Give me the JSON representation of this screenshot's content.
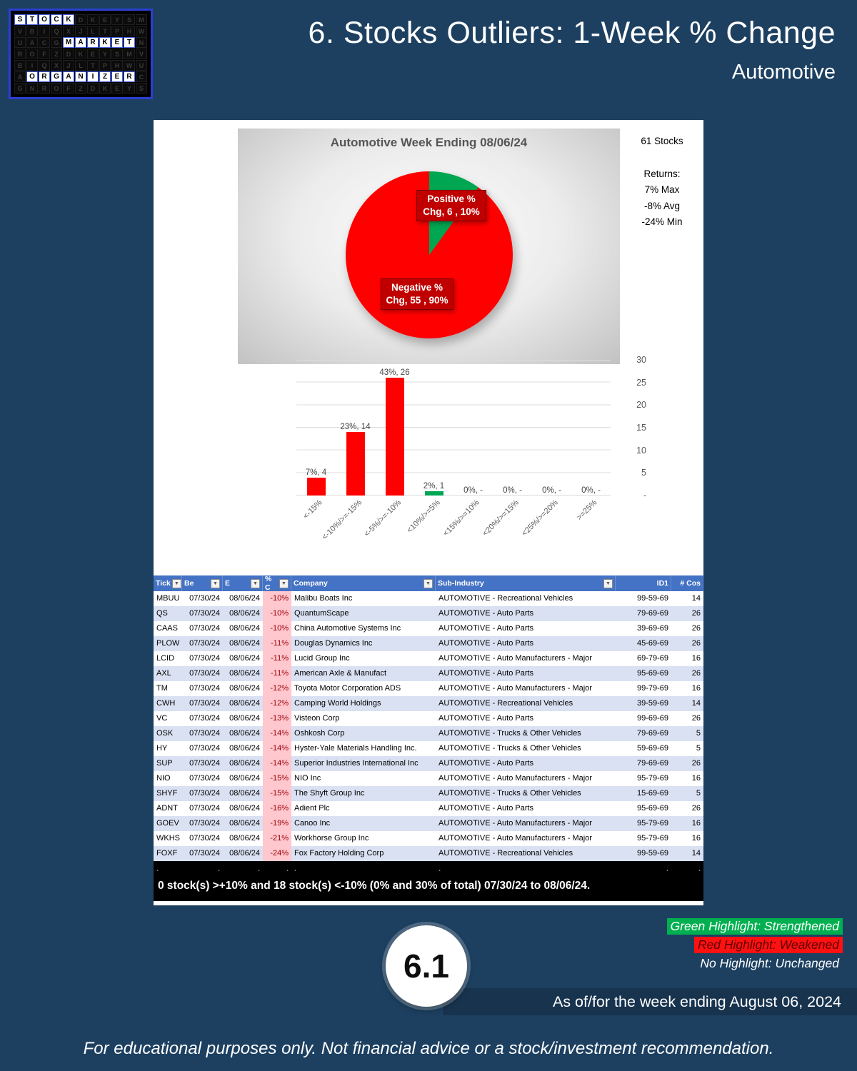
{
  "header": {
    "title": "6. Stocks Outliers: 1-Week % Change",
    "subtitle": "Automotive"
  },
  "logo": {
    "words": [
      {
        "word": "STOCK",
        "row": 0,
        "col": 0
      },
      {
        "word": "MARKET",
        "row": 2,
        "col": 4
      },
      {
        "word": "ORGANIZER",
        "row": 5,
        "col": 1
      }
    ],
    "filler": "DKEYSMVBIQXJLTPHWUACGNROFZDKEYSMVBIQXJLTPHWUACGNROFZDKEYSMVBIQXJLTPHWUACGNROFZ"
  },
  "stats": {
    "count": "61 Stocks",
    "returns_label": "Returns:",
    "lines": [
      "7% Max",
      "-8% Avg",
      "-24% Min"
    ]
  },
  "chart_data": [
    {
      "type": "pie",
      "title": "Automotive Week Ending 08/06/24",
      "slices": [
        {
          "label": "Positive % Chg,  6 , 10%",
          "value": 6,
          "pct": 10,
          "color": "#00A651"
        },
        {
          "label": "Negative % Chg,  55 , 90%",
          "value": 55,
          "pct": 90,
          "color": "#FF0000"
        }
      ],
      "label_bg": "#C00000",
      "legend_position": "none"
    },
    {
      "type": "bar",
      "categories": [
        "<-15%",
        "<-10%/>=-15%",
        "<-5%/>=-10%",
        "<10%/>=5%",
        "<15%/>=10%",
        "<20%/>=15%",
        "<25%/>=20%",
        ">=25%"
      ],
      "values": [
        4,
        14,
        26,
        1,
        0,
        0,
        0,
        0
      ],
      "labels": [
        "7%, 4",
        "23%, 14",
        "43%, 26",
        "2%, 1",
        "0%, -",
        "0%, -",
        "0%, -",
        "0%, -"
      ],
      "colors": [
        "#FF0000",
        "#FF0000",
        "#FF0000",
        "#00A651",
        "#FF0000",
        "#FF0000",
        "#FF0000",
        "#FF0000"
      ],
      "title": "",
      "xlabel": "",
      "ylabel": "",
      "ylim": [
        0,
        30
      ],
      "yticks": [
        "30",
        "25",
        "20",
        "15",
        "10",
        "5",
        "-"
      ],
      "grid": true,
      "axis_side": "right"
    }
  ],
  "table": {
    "headers": [
      {
        "label": "Tick",
        "filter": true,
        "align": "left"
      },
      {
        "label": "Be",
        "filter": true,
        "align": "left"
      },
      {
        "label": "E",
        "filter": true,
        "align": "left"
      },
      {
        "label": "% C",
        "filter": true,
        "align": "left"
      },
      {
        "label": "Company",
        "filter": true,
        "align": "left"
      },
      {
        "label": "Sub-Industry",
        "filter": true,
        "align": "left"
      },
      {
        "label": "ID1",
        "filter": false,
        "align": "right"
      },
      {
        "label": "# Cos",
        "filter": false,
        "align": "right"
      }
    ],
    "rows": [
      [
        "MBUU",
        "07/30/24",
        "08/06/24",
        "-10%",
        "Malibu Boats Inc",
        "AUTOMOTIVE - Recreational Vehicles",
        "99-59-69",
        "14"
      ],
      [
        "QS",
        "07/30/24",
        "08/06/24",
        "-10%",
        "QuantumScape",
        "AUTOMOTIVE - Auto Parts",
        "79-69-69",
        "26"
      ],
      [
        "CAAS",
        "07/30/24",
        "08/06/24",
        "-10%",
        "China Automotive Systems Inc",
        "AUTOMOTIVE - Auto Parts",
        "39-69-69",
        "26"
      ],
      [
        "PLOW",
        "07/30/24",
        "08/06/24",
        "-11%",
        "Douglas Dynamics Inc",
        "AUTOMOTIVE - Auto Parts",
        "45-69-69",
        "26"
      ],
      [
        "LCID",
        "07/30/24",
        "08/06/24",
        "-11%",
        "Lucid Group Inc",
        "AUTOMOTIVE - Auto Manufacturers - Major",
        "69-79-69",
        "16"
      ],
      [
        "AXL",
        "07/30/24",
        "08/06/24",
        "-11%",
        "American Axle & Manufact",
        "AUTOMOTIVE - Auto Parts",
        "95-69-69",
        "26"
      ],
      [
        "TM",
        "07/30/24",
        "08/06/24",
        "-12%",
        "Toyota Motor Corporation ADS",
        "AUTOMOTIVE - Auto Manufacturers - Major",
        "99-79-69",
        "16"
      ],
      [
        "CWH",
        "07/30/24",
        "08/06/24",
        "-12%",
        "Camping World Holdings",
        "AUTOMOTIVE - Recreational Vehicles",
        "39-59-69",
        "14"
      ],
      [
        "VC",
        "07/30/24",
        "08/06/24",
        "-13%",
        "Visteon Corp",
        "AUTOMOTIVE - Auto Parts",
        "99-69-69",
        "26"
      ],
      [
        "OSK",
        "07/30/24",
        "08/06/24",
        "-14%",
        "Oshkosh Corp",
        "AUTOMOTIVE - Trucks & Other Vehicles",
        "79-69-69",
        "5"
      ],
      [
        "HY",
        "07/30/24",
        "08/06/24",
        "-14%",
        "Hyster-Yale Materials Handling Inc.",
        "AUTOMOTIVE - Trucks & Other Vehicles",
        "59-69-69",
        "5"
      ],
      [
        "SUP",
        "07/30/24",
        "08/06/24",
        "-14%",
        "Superior Industries International Inc",
        "AUTOMOTIVE - Auto Parts",
        "79-69-69",
        "26"
      ],
      [
        "NIO",
        "07/30/24",
        "08/06/24",
        "-15%",
        "NIO Inc",
        "AUTOMOTIVE - Auto Manufacturers - Major",
        "95-79-69",
        "16"
      ],
      [
        "SHYF",
        "07/30/24",
        "08/06/24",
        "-15%",
        "The Shyft Group Inc",
        "AUTOMOTIVE - Trucks & Other Vehicles",
        "15-69-69",
        "5"
      ],
      [
        "ADNT",
        "07/30/24",
        "08/06/24",
        "-16%",
        "Adient Plc",
        "AUTOMOTIVE - Auto Parts",
        "95-69-69",
        "26"
      ],
      [
        "GOEV",
        "07/30/24",
        "08/06/24",
        "-19%",
        "Canoo Inc",
        "AUTOMOTIVE - Auto Manufacturers - Major",
        "95-79-69",
        "16"
      ],
      [
        "WKHS",
        "07/30/24",
        "08/06/24",
        "-21%",
        "Workhorse Group Inc",
        "AUTOMOTIVE - Auto Manufacturers - Major",
        "95-79-69",
        "16"
      ],
      [
        "FOXF",
        "07/30/24",
        "08/06/24",
        "-24%",
        "Fox Factory Holding Corp",
        "AUTOMOTIVE - Recreational Vehicles",
        "99-59-69",
        "14"
      ]
    ]
  },
  "summary": {
    "dots": [
      ".",
      ".",
      ".",
      ".",
      ".",
      ".",
      ".",
      "."
    ],
    "text": "0 stock(s) >+10% and 18 stock(s) <-10% (0% and 30% of total) 07/30/24 to 08/06/24."
  },
  "legend": [
    {
      "text": "Green Highlight: Strengthened",
      "bg": "#00B050",
      "fg": "#FFFFFF"
    },
    {
      "text": "Red Highlight: Weakened",
      "bg": "#FF1111",
      "fg": "#5B0000"
    },
    {
      "text": "No Highlight: Unchanged",
      "bg": "transparent",
      "fg": "#FFFFFF"
    }
  ],
  "footer": {
    "badge": "6.1",
    "as_of": "As of/for the week ending August 06, 2024",
    "disclaimer": "For educational purposes only. Not financial advice or a stock/investment recommendation."
  },
  "colors": {
    "background": "#1d4061",
    "table_header": "#4472C4",
    "row_alt": "#D9E1F2",
    "negative_cell_bg": "#FFC7CE",
    "negative_cell_fg": "#9C0006",
    "pie_positive": "#00A651",
    "pie_negative": "#FF0000"
  }
}
